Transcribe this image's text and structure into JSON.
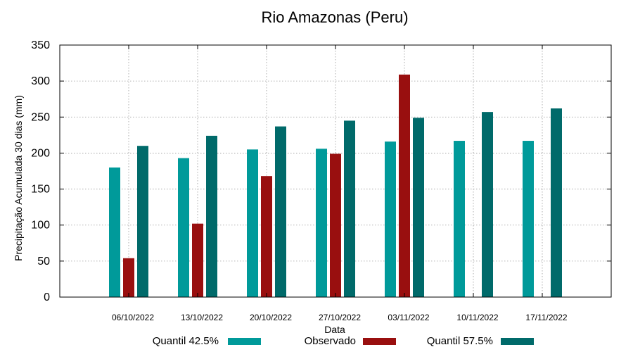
{
  "chart_data": {
    "type": "bar",
    "title": "Rio Amazonas (Peru)",
    "xlabel": "Data",
    "ylabel": "Precipitação Acumulada 30 dias (mm)",
    "ylim": [
      0,
      350
    ],
    "yticks": [
      0,
      50,
      100,
      150,
      200,
      250,
      300,
      350
    ],
    "grid": true,
    "legend_position": "bottom",
    "categories": [
      "06/10/2022",
      "13/10/2022",
      "20/10/2022",
      "27/10/2022",
      "03/11/2022",
      "10/11/2022",
      "17/11/2022"
    ],
    "series": [
      {
        "name": "Quantil 42.5%",
        "color": "#009a9a",
        "values": [
          180,
          193,
          205,
          206,
          216,
          217,
          217
        ]
      },
      {
        "name": "Observado",
        "color": "#990f0f",
        "values": [
          54,
          102,
          168,
          199,
          309,
          null,
          null
        ]
      },
      {
        "name": "Quantil 57.5%",
        "color": "#006a6a",
        "values": [
          210,
          224,
          237,
          245,
          249,
          257,
          262
        ]
      }
    ]
  }
}
